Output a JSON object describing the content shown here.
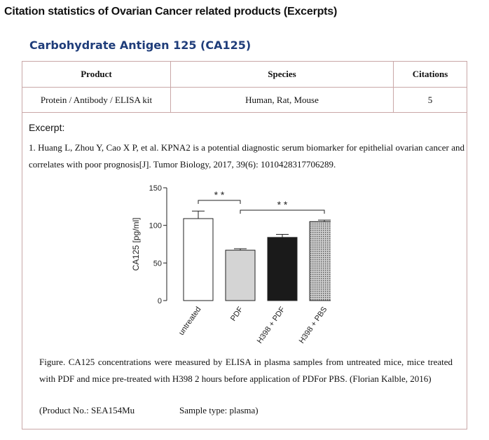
{
  "page_title": "Citation statistics of Ovarian Cancer related products (Excerpts)",
  "section_title": "Carbohydrate Antigen 125 (CA125)",
  "table": {
    "headers": [
      "Product",
      "Species",
      "Citations"
    ],
    "row": [
      "Protein / Antibody / ELISA kit",
      "Human, Rat, Mouse",
      "5"
    ]
  },
  "excerpt_label": "Excerpt:",
  "reference": "1. Huang L, Zhou Y, Cao X P, et al. KPNA2 is a potential diagnostic serum biomarker for epithelial ovarian cancer and correlates with poor prognosis[J]. Tumor Biology, 2017, 39(6): 1010428317706289.",
  "chart_data": {
    "type": "bar",
    "ylabel": "CA125 [pg/ml]",
    "ylim": [
      0,
      150
    ],
    "yticks": [
      "0",
      "50",
      "100",
      "150"
    ],
    "categories": [
      "untreated",
      "PDF",
      "H398 + PDF",
      "H398 + PBS"
    ],
    "values": [
      109,
      67,
      84,
      105
    ],
    "errors": [
      10,
      2,
      4,
      2
    ],
    "fills": [
      "#ffffff",
      "#d4d4d4",
      "#1a1a1a",
      "#a8a8a8"
    ],
    "annotations": [
      "* *",
      "* *"
    ]
  },
  "caption": "Figure. CA125 concentrations were measured by ELISA in plasma samples from untreated mice, mice treated with PDF and mice pre-treated with H398 2 hours before application of PDFor PBS. (Florian Kalble, 2016)",
  "product_no": "(Product No.: SEA154Mu",
  "sample_type": "Sample type: plasma)"
}
